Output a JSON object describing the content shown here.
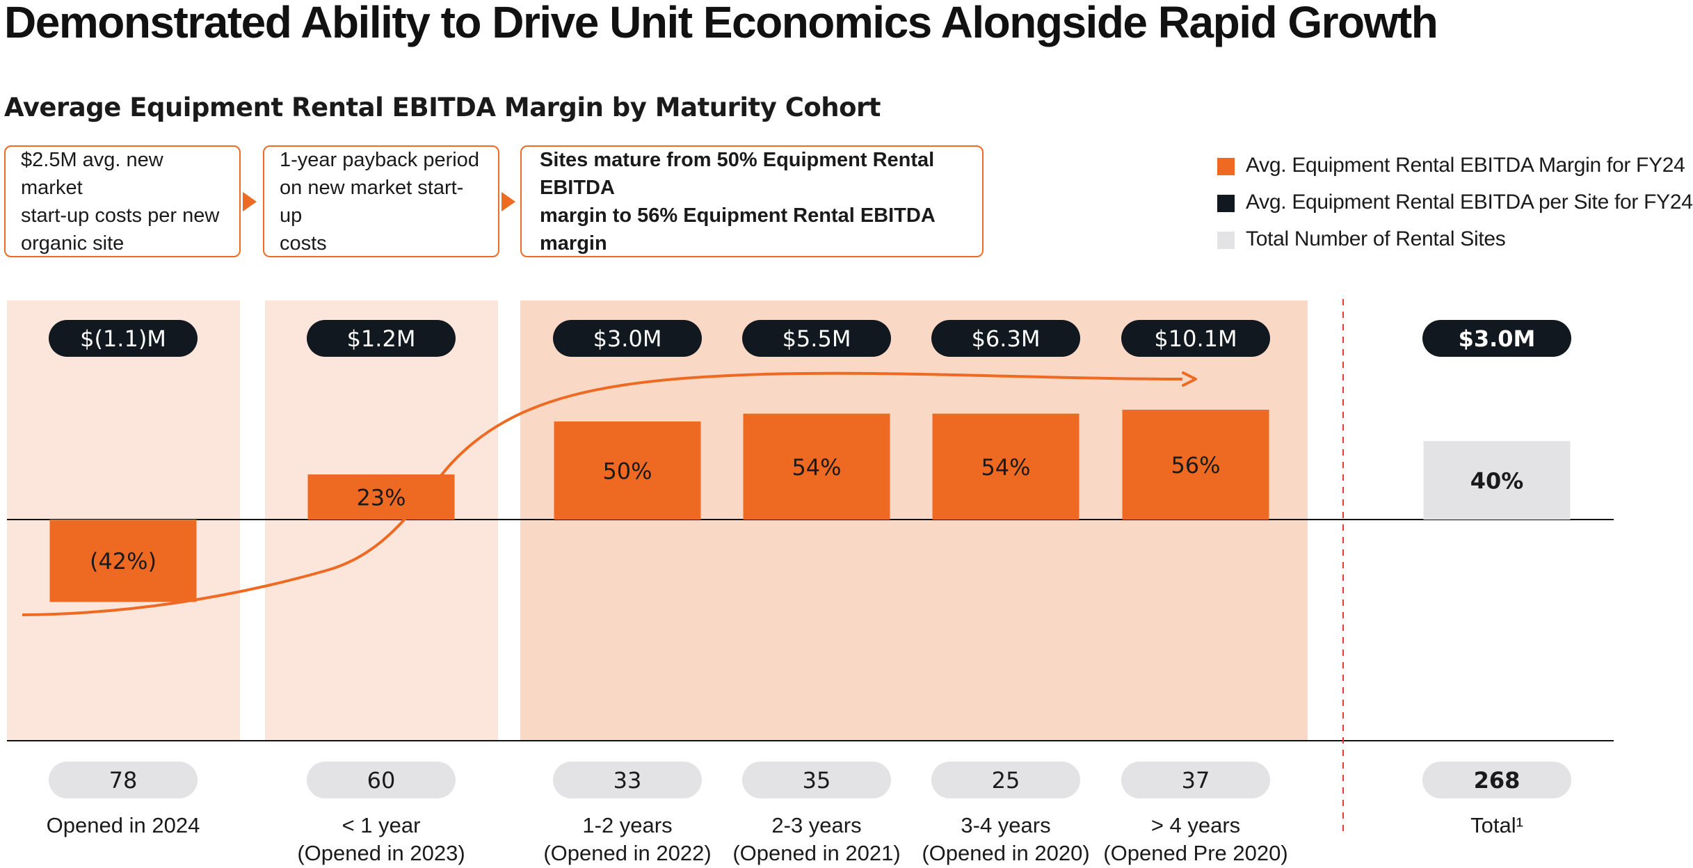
{
  "title": "Demonstrated Ability to Drive Unit Economics Alongside Rapid Growth",
  "subtitle": "Average Equipment Rental EBITDA Margin by Maturity Cohort",
  "callouts": [
    {
      "lines": [
        "$2.5M avg. new market",
        "start-up costs per new",
        "organic site"
      ]
    },
    {
      "lines": [
        "1-year payback period",
        "on new market start-up",
        "costs"
      ]
    },
    {
      "lines": [
        "Sites mature from 50% Equipment Rental EBITDA",
        "margin to 56% Equipment Rental EBITDA margin"
      ]
    }
  ],
  "legend": [
    {
      "label": "Avg. Equipment Rental EBITDA Margin for FY24",
      "color": "#ee6a23"
    },
    {
      "label": "Avg. Equipment Rental EBITDA per Site for FY24",
      "color": "#111820"
    },
    {
      "label": "Total Number of Rental Sites",
      "color": "#e3e3e6"
    }
  ],
  "colors": {
    "margin_bar": "#ee6a23",
    "total_bar": "#e3e3e6",
    "ebitda_pill": "#111820",
    "sites_pill": "#e3e3e6",
    "shade_light": "#fce6db",
    "shade_mature": "#f9d8c6",
    "divider": "#e53935"
  },
  "chart_data": {
    "type": "bar",
    "categories": [
      {
        "line1": "Opened in 2024",
        "line2": ""
      },
      {
        "line1": "< 1 year",
        "line2": "(Opened in 2023)"
      },
      {
        "line1": "1-2 years",
        "line2": "(Opened in 2022)"
      },
      {
        "line1": "2-3 years",
        "line2": "(Opened in 2021)"
      },
      {
        "line1": "3-4 years",
        "line2": "(Opened in 2020)"
      },
      {
        "line1": "> 4 years",
        "line2": "(Opened Pre 2020)"
      },
      {
        "line1": "Total¹",
        "line2": ""
      }
    ],
    "series": [
      {
        "name": "Avg. Equipment Rental EBITDA Margin for FY24",
        "values": [
          -42,
          23,
          50,
          54,
          54,
          56,
          40
        ],
        "labels": [
          "(42%)",
          "23%",
          "50%",
          "54%",
          "54%",
          "56%",
          "40%"
        ]
      },
      {
        "name": "Avg. Equipment Rental EBITDA per Site for FY24",
        "values": [
          -1.1,
          1.2,
          3.0,
          5.5,
          6.3,
          10.1,
          3.0
        ],
        "labels": [
          "$(1.1)M",
          "$1.2M",
          "$3.0M",
          "$5.5M",
          "$6.3M",
          "$10.1M",
          "$3.0M"
        ]
      },
      {
        "name": "Total Number of Rental Sites",
        "values": [
          78,
          60,
          33,
          35,
          25,
          37,
          268
        ],
        "labels": [
          "78",
          "60",
          "33",
          "35",
          "25",
          "37",
          "268"
        ]
      }
    ],
    "total_index": 6,
    "legend_position": "top-right"
  }
}
